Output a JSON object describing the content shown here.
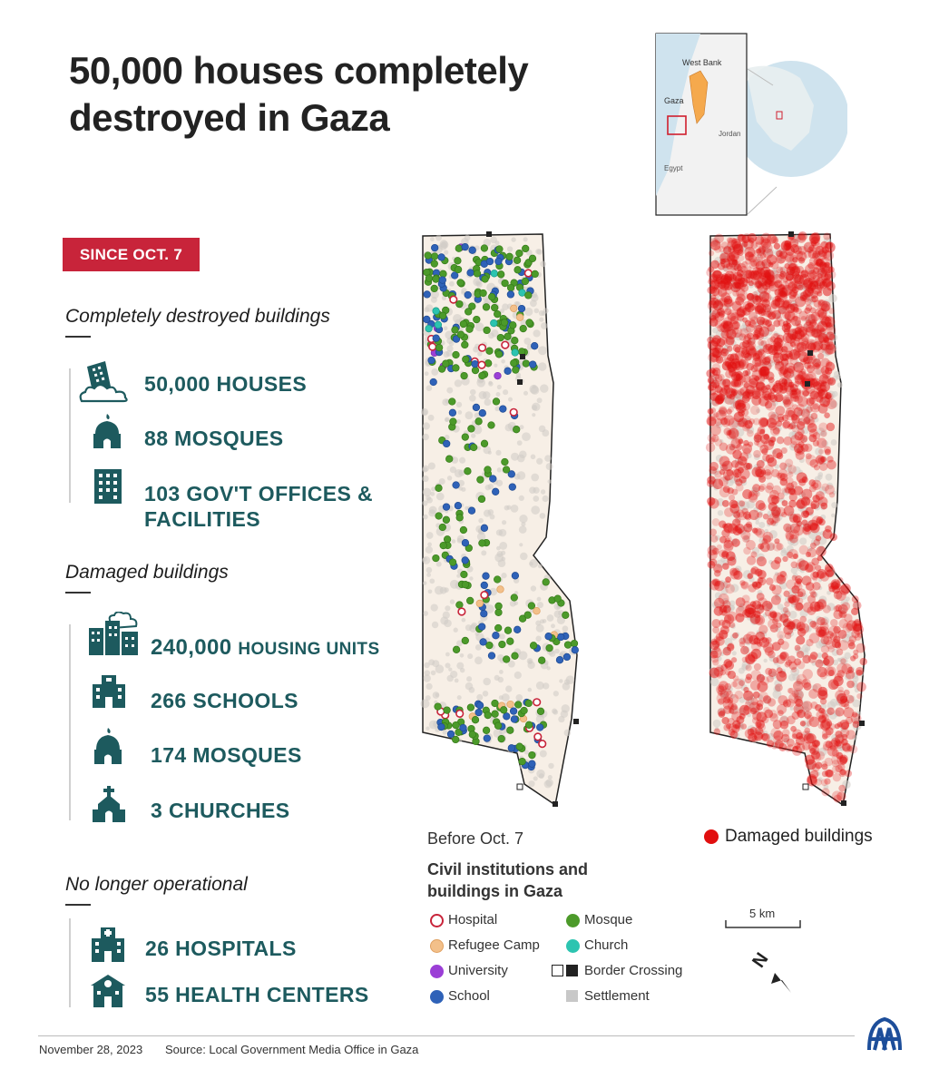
{
  "title": "50,000 houses completely destroyed in Gaza",
  "inset": {
    "labels": {
      "west_bank": "West Bank",
      "gaza": "Gaza",
      "jordan": "Jordan",
      "egypt": "Egypt"
    }
  },
  "badge": "SINCE OCT. 7",
  "sections": {
    "destroyed": {
      "heading": "Completely destroyed buildings",
      "items": [
        {
          "icon": "destroyed-building-icon",
          "text": "50,000 HOUSES"
        },
        {
          "icon": "mosque-icon",
          "text": "88 MOSQUES"
        },
        {
          "icon": "office-building-icon",
          "line1": "103 GOV'T OFFICES &",
          "line2": "FACILITIES"
        }
      ]
    },
    "damaged": {
      "heading": "Damaged buildings",
      "items": [
        {
          "icon": "damaged-housing-icon",
          "num": "240,000",
          "unit": "HOUSING UNITS"
        },
        {
          "icon": "school-icon",
          "text": "266 SCHOOLS"
        },
        {
          "icon": "mosque-icon",
          "text": "174 MOSQUES"
        },
        {
          "icon": "church-icon",
          "text": "3 CHURCHES"
        }
      ]
    },
    "not_operational": {
      "heading": "No longer operational",
      "items": [
        {
          "icon": "hospital-icon",
          "text": "26 HOSPITALS"
        },
        {
          "icon": "health-center-icon",
          "text": "55 HEALTH CENTERS"
        }
      ]
    }
  },
  "map_left": {
    "caption": "Before Oct. 7",
    "legend_title": "Civil institutions and buildings in Gaza",
    "legend": [
      {
        "label": "Hospital",
        "color": "#ffffff",
        "stroke": "#c8243a"
      },
      {
        "label": "Refugee Camp",
        "color": "#f3c08a",
        "stroke": "#e0a060"
      },
      {
        "label": "University",
        "color": "#9b3fd6",
        "stroke": "#7a2db0"
      },
      {
        "label": "School",
        "color": "#2f62b8",
        "stroke": "#1f4a90"
      },
      {
        "label": "Mosque",
        "color": "#4c9a2a",
        "stroke": "#367a1a"
      },
      {
        "label": "Church",
        "color": "#2cc4b0",
        "stroke": "#1a9a8a"
      },
      {
        "label": "Border Crossing",
        "color": "#222222",
        "stroke": "#222222"
      },
      {
        "label": "Settlement",
        "color": "#c8c8c8",
        "stroke": "#c8c8c8"
      }
    ]
  },
  "map_right": {
    "legend_label": "Damaged buildings",
    "color": "#e10f0f"
  },
  "scale": {
    "label": "5 km"
  },
  "north_label": "N",
  "footer": {
    "date": "November 28, 2023",
    "source": "Source: Local Government Media Office in Gaza"
  },
  "colors": {
    "accent": "#c8243a",
    "teal": "#1d5a5e"
  }
}
